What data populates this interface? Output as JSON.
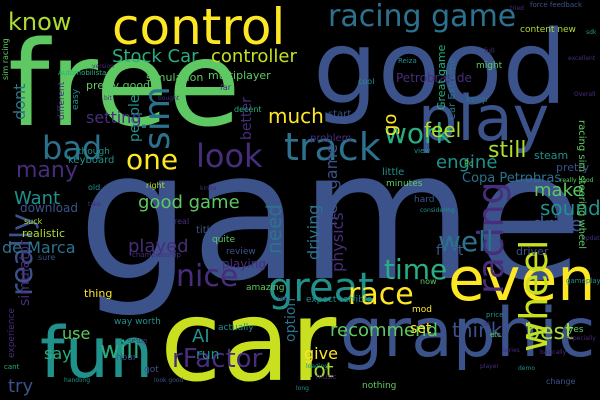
{
  "background": "#000000",
  "palette": {
    "dark_purple": "#440154",
    "purple": "#472d7b",
    "indigo": "#3b528b",
    "blue": "#2c728e",
    "teal": "#21918c",
    "green": "#28ae80",
    "light_green": "#5ec962",
    "lime": "#addc30",
    "yellow": "#fde725"
  },
  "words": [
    {
      "text": "game",
      "color": "#3b528b"
    },
    {
      "text": "free",
      "color": "#5ec962"
    },
    {
      "text": "good",
      "color": "#3b528b"
    },
    {
      "text": "car",
      "color": "#c8e020"
    },
    {
      "text": "control",
      "color": "#fde725"
    },
    {
      "text": "graphic",
      "color": "#3b528b"
    },
    {
      "text": "fun",
      "color": "#21918c"
    },
    {
      "text": "racing game",
      "color": "#2c728e"
    },
    {
      "text": "play",
      "color": "#3b528b"
    },
    {
      "text": "even",
      "color": "#fde725"
    },
    {
      "text": "track",
      "color": "#2c728e"
    },
    {
      "text": "wheel",
      "color": "#c8e020"
    },
    {
      "text": "great",
      "color": "#21918c"
    },
    {
      "text": "racing",
      "color": "#472d7b"
    },
    {
      "text": "look",
      "color": "#472d7b"
    },
    {
      "text": "nice",
      "color": "#472d7b"
    },
    {
      "text": "bad",
      "color": "#2c728e"
    },
    {
      "text": "sim",
      "color": "#2c728e"
    },
    {
      "text": "one",
      "color": "#fde725"
    },
    {
      "text": "well",
      "color": "#2c728e"
    },
    {
      "text": "race",
      "color": "#fde725"
    },
    {
      "text": "work",
      "color": "#28ae80"
    },
    {
      "text": "time",
      "color": "#28ae80"
    },
    {
      "text": "really",
      "color": "#3b528b"
    },
    {
      "text": "know",
      "color": "#addc30"
    },
    {
      "text": "will",
      "color": "#28ae80"
    },
    {
      "text": "rFactor",
      "color": "#472d7b"
    },
    {
      "text": "Stock Car",
      "color": "#28ae80"
    },
    {
      "text": "controller",
      "color": "#c8e020"
    },
    {
      "text": "need",
      "color": "#2c728e"
    },
    {
      "text": "much",
      "color": "#fde725"
    },
    {
      "text": "feel",
      "color": "#addc30"
    },
    {
      "text": "sound",
      "color": "#21918c"
    },
    {
      "text": "drive",
      "color": "#3b528b"
    },
    {
      "text": "make",
      "color": "#5ec962"
    },
    {
      "text": "still",
      "color": "#addc30"
    },
    {
      "text": "engine",
      "color": "#21918c"
    },
    {
      "text": "good game",
      "color": "#5ec962"
    },
    {
      "text": "free game",
      "color": "#3b528b"
    },
    {
      "text": "driving",
      "color": "#2c728e"
    },
    {
      "text": "physics",
      "color": "#472d7b"
    },
    {
      "text": "recommend",
      "color": "#5ec962"
    },
    {
      "text": "played",
      "color": "#472d7b"
    },
    {
      "text": "best",
      "color": "#addc30"
    },
    {
      "text": "lot",
      "color": "#addc30"
    },
    {
      "text": "think",
      "color": "#3b528b"
    },
    {
      "text": "AI",
      "color": "#21918c"
    },
    {
      "text": "run",
      "color": "#21918c"
    },
    {
      "text": "say",
      "color": "#28ae80"
    },
    {
      "text": "use",
      "color": "#5ec962"
    },
    {
      "text": "people",
      "color": "#21918c"
    },
    {
      "text": "Want",
      "color": "#21918c"
    },
    {
      "text": "many",
      "color": "#472d7b"
    },
    {
      "text": "dont",
      "color": "#2c728e"
    },
    {
      "text": "setting",
      "color": "#472d7b"
    },
    {
      "text": "better",
      "color": "#472d7b"
    },
    {
      "text": "go",
      "color": "#fde725"
    },
    {
      "text": "give",
      "color": "#fde725"
    },
    {
      "text": "try",
      "color": "#3b528b"
    },
    {
      "text": "set",
      "color": "#fde725"
    },
    {
      "text": "de Marca",
      "color": "#2c728e"
    },
    {
      "text": "simulator",
      "color": "#472d7b"
    },
    {
      "text": "option",
      "color": "#2c728e"
    },
    {
      "text": "Copa Petrobras",
      "color": "#2c728e"
    },
    {
      "text": "Petrobras de",
      "color": "#472d7b"
    },
    {
      "text": "multiplayer",
      "color": "#5ec962"
    },
    {
      "text": "simulation",
      "color": "#5ec962"
    },
    {
      "text": "download",
      "color": "#3b528b"
    },
    {
      "text": "realistic",
      "color": "#addc30"
    },
    {
      "text": "playing",
      "color": "#472d7b"
    },
    {
      "text": "pretty good",
      "color": "#5ec962"
    },
    {
      "text": "thing",
      "color": "#fde725"
    },
    {
      "text": "title",
      "color": "#3b528b"
    },
    {
      "text": "first",
      "color": "#3b528b"
    },
    {
      "text": "driver",
      "color": "#3b528b"
    },
    {
      "text": "steam",
      "color": "#21918c"
    },
    {
      "text": "pretty",
      "color": "#3b528b"
    },
    {
      "text": "Great game",
      "color": "#28ae80"
    },
    {
      "text": "Car Extreme",
      "color": "#2c728e"
    },
    {
      "text": "problem",
      "color": "#472d7b"
    },
    {
      "text": "start",
      "color": "#3b528b"
    },
    {
      "text": "keyboard",
      "color": "#21918c"
    },
    {
      "text": "different",
      "color": "#472d7b"
    },
    {
      "text": "easy",
      "color": "#21918c"
    },
    {
      "text": "though",
      "color": "#21918c"
    },
    {
      "text": "amazing",
      "color": "#5ec962"
    },
    {
      "text": "quite",
      "color": "#5ec962"
    },
    {
      "text": "review",
      "color": "#3b528b"
    },
    {
      "text": "little",
      "color": "#21918c"
    },
    {
      "text": "minutes",
      "color": "#5ec962"
    },
    {
      "text": "hard",
      "color": "#3b528b"
    },
    {
      "text": "mod",
      "color": "#fde725"
    },
    {
      "text": "experience",
      "color": "#472d7b"
    },
    {
      "text": "actually",
      "color": "#21918c"
    },
    {
      "text": "hour",
      "color": "#3b528b"
    },
    {
      "text": "got",
      "color": "#3b528b"
    },
    {
      "text": "way worth",
      "color": "#21918c"
    },
    {
      "text": "expect terrible",
      "color": "#21918c"
    },
    {
      "text": "nothing",
      "color": "#5ec962"
    },
    {
      "text": "content new",
      "color": "#addc30"
    },
    {
      "text": "might",
      "color": "#5ec962"
    },
    {
      "text": "keep",
      "color": "#2c728e"
    },
    {
      "text": "right",
      "color": "#addc30"
    },
    {
      "text": "sure",
      "color": "#3b528b"
    },
    {
      "text": "suck",
      "color": "#addc30"
    },
    {
      "text": "old",
      "color": "#21918c"
    },
    {
      "text": "real",
      "color": "#472d7b"
    },
    {
      "text": "far",
      "color": "#472d7b"
    },
    {
      "text": "decent",
      "color": "#28ae80"
    },
    {
      "text": "now",
      "color": "#5ec962"
    },
    {
      "text": "cool",
      "color": "#21918c"
    },
    {
      "text": "force feedback",
      "color": "#3b528b"
    },
    {
      "text": "racing sim steering wheel",
      "color": "#5ec962"
    },
    {
      "text": "sim racing",
      "color": "#5ec962"
    },
    {
      "text": "Automobilista",
      "color": "#28ae80"
    },
    {
      "text": "championship",
      "color": "#472d7b"
    },
    {
      "text": "cant",
      "color": "#28ae80"
    },
    {
      "text": "setup",
      "color": "#472d7b"
    },
    {
      "text": "music",
      "color": "#472d7b"
    },
    {
      "text": "yes",
      "color": "#5ec962"
    },
    {
      "text": "change",
      "color": "#3b528b"
    },
    {
      "text": "gameplay",
      "color": "#21918c"
    },
    {
      "text": "etc",
      "color": "#5ec962"
    },
    {
      "text": "price",
      "color": "#21918c"
    },
    {
      "text": "Pc",
      "color": "#5ec962"
    },
    {
      "text": "full",
      "color": "#472d7b"
    },
    {
      "text": "Reiza",
      "color": "#21918c"
    },
    {
      "text": "view",
      "color": "#21918c"
    },
    {
      "text": "kinda",
      "color": "#472d7b"
    },
    {
      "text": "demo",
      "color": "#21918c"
    },
    {
      "text": "player",
      "color": "#472d7b"
    },
    {
      "text": "really good",
      "color": "#5ec962"
    },
    {
      "text": "look good",
      "color": "#3b528b"
    },
    {
      "text": "handling",
      "color": "#21918c"
    },
    {
      "text": "considering",
      "color": "#21918c"
    },
    {
      "text": "tried",
      "color": "#472d7b"
    },
    {
      "text": "long",
      "color": "#21918c"
    },
    {
      "text": "sdk",
      "color": "#21918c"
    },
    {
      "text": "excellent",
      "color": "#472d7b"
    },
    {
      "text": "Overall",
      "color": "#472d7b"
    },
    {
      "text": "take",
      "color": "#472d7b"
    },
    {
      "text": "bit",
      "color": "#472d7b"
    },
    {
      "text": "bought",
      "color": "#472d7b"
    },
    {
      "text": "lap",
      "color": "#472d7b"
    },
    {
      "text": "update",
      "color": "#472d7b"
    },
    {
      "text": "ok",
      "color": "#472d7b"
    },
    {
      "text": "loading",
      "color": "#21918c"
    },
    {
      "text": "series",
      "color": "#472d7b"
    },
    {
      "text": "version",
      "color": "#472d7b"
    },
    {
      "text": "especially",
      "color": "#472d7b"
    },
    {
      "text": "basically",
      "color": "#472d7b"
    }
  ]
}
